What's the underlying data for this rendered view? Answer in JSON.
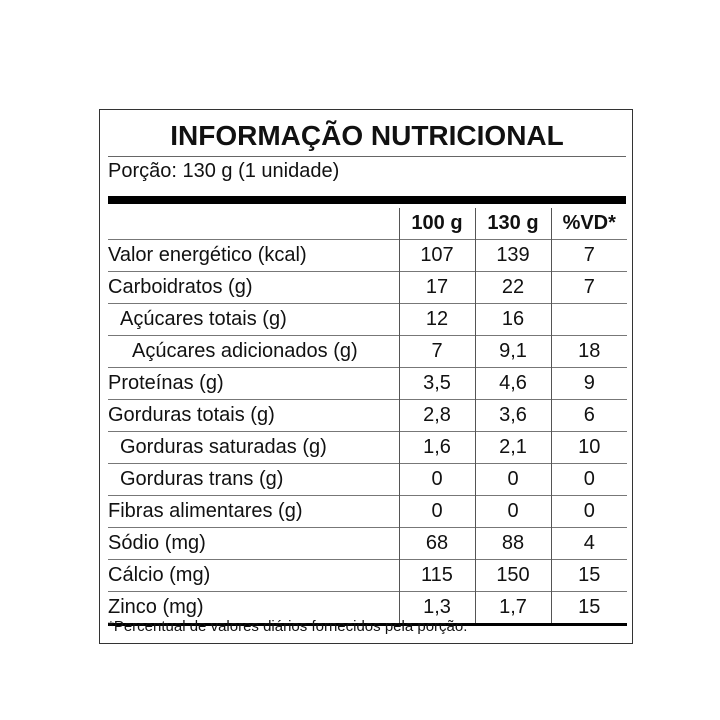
{
  "title": "INFORMAÇÃO NUTRICIONAL",
  "portion": "Porção: 130 g (1 unidade)",
  "headers": [
    "100 g",
    "130 g",
    "%VD*"
  ],
  "rows": [
    {
      "label": "Valor energético (kcal)",
      "indent": 0,
      "v100": "107",
      "v130": "139",
      "vd": "7"
    },
    {
      "label": "Carboidratos (g)",
      "indent": 0,
      "v100": "17",
      "v130": "22",
      "vd": "7"
    },
    {
      "label": "Açúcares totais (g)",
      "indent": 1,
      "v100": "12",
      "v130": "16",
      "vd": ""
    },
    {
      "label": "Açúcares adicionados (g)",
      "indent": 2,
      "v100": "7",
      "v130": "9,1",
      "vd": "18"
    },
    {
      "label": "Proteínas (g)",
      "indent": 0,
      "v100": "3,5",
      "v130": "4,6",
      "vd": "9"
    },
    {
      "label": "Gorduras totais (g)",
      "indent": 0,
      "v100": "2,8",
      "v130": "3,6",
      "vd": "6"
    },
    {
      "label": "Gorduras saturadas (g)",
      "indent": 1,
      "v100": "1,6",
      "v130": "2,1",
      "vd": "10"
    },
    {
      "label": "Gorduras trans (g)",
      "indent": 1,
      "v100": "0",
      "v130": "0",
      "vd": "0"
    },
    {
      "label": "Fibras alimentares (g)",
      "indent": 0,
      "v100": "0",
      "v130": "0",
      "vd": "0"
    },
    {
      "label": "Sódio (mg)",
      "indent": 0,
      "v100": "68",
      "v130": "88",
      "vd": "4"
    },
    {
      "label": "Cálcio (mg)",
      "indent": 0,
      "v100": "115",
      "v130": "150",
      "vd": "15"
    },
    {
      "label": "Zinco (mg)",
      "indent": 0,
      "v100": "1,3",
      "v130": "1,7",
      "vd": "15"
    }
  ],
  "footnote": "*Percentual de valores diários fornecidos pela porção."
}
